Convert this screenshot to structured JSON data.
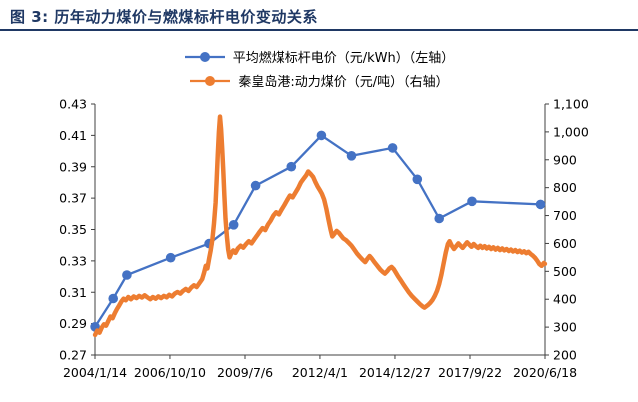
{
  "title": "图 3: 历年动力煤价与燃煤标杆电价变动关系",
  "theme": {
    "title_color": "#1F3864",
    "divider_color": "#1F3864",
    "axis_color": "#404040",
    "tick_label_color": "#000000",
    "background": "#ffffff"
  },
  "legend": [
    {
      "label": "平均燃煤标杆电价（元/kWh）（左轴）",
      "color": "#4472C4"
    },
    {
      "label": "秦皇岛港:动力煤价（元/吨）（右轴）",
      "color": "#ED7D31"
    }
  ],
  "chart_data": {
    "type": "line",
    "title": "历年动力煤价与燃煤标杆电价变动关系",
    "grid": false,
    "legend_position": "top",
    "x_range": [
      2004.036,
      2020.463
    ],
    "x_ticks": [
      {
        "value": 2004.036,
        "label": "2004/1/14"
      },
      {
        "value": 2006.772,
        "label": "2006/10/10"
      },
      {
        "value": 2009.512,
        "label": "2009/7/6"
      },
      {
        "value": 2012.247,
        "label": "2012/4/1"
      },
      {
        "value": 2014.986,
        "label": "2014/12/27"
      },
      {
        "value": 2017.725,
        "label": "2017/9/22"
      },
      {
        "value": 2020.463,
        "label": "2020/6/18"
      }
    ],
    "left_axis": {
      "min": 0.27,
      "max": 0.43,
      "ticks": [
        {
          "value": 0.27,
          "label": "0.27"
        },
        {
          "value": 0.29,
          "label": "0.29"
        },
        {
          "value": 0.31,
          "label": "0.31"
        },
        {
          "value": 0.33,
          "label": "0.33"
        },
        {
          "value": 0.35,
          "label": "0.35"
        },
        {
          "value": 0.37,
          "label": "0.37"
        },
        {
          "value": 0.39,
          "label": "0.39"
        },
        {
          "value": 0.41,
          "label": "0.41"
        },
        {
          "value": 0.43,
          "label": "0.43"
        }
      ]
    },
    "right_axis": {
      "min": 200,
      "max": 1100,
      "ticks": [
        {
          "value": 200,
          "label": "200"
        },
        {
          "value": 300,
          "label": "300"
        },
        {
          "value": 400,
          "label": "400"
        },
        {
          "value": 500,
          "label": "500"
        },
        {
          "value": 600,
          "label": "600"
        },
        {
          "value": 700,
          "label": "700"
        },
        {
          "value": 800,
          "label": "800"
        },
        {
          "value": 900,
          "label": "900"
        },
        {
          "value": 1000,
          "label": "1,000"
        },
        {
          "value": 1100,
          "label": "1,100"
        }
      ]
    },
    "series": [
      {
        "id": "electricity-price",
        "name": "平均燃煤标杆电价（元/kWh）（左轴）",
        "axis": "left",
        "color": "#4472C4",
        "marker": true,
        "line_width": 2.3,
        "points": [
          [
            2004.04,
            0.288
          ],
          [
            2004.7,
            0.306
          ],
          [
            2005.2,
            0.321
          ],
          [
            2006.8,
            0.332
          ],
          [
            2008.2,
            0.341
          ],
          [
            2009.1,
            0.353
          ],
          [
            2009.9,
            0.378
          ],
          [
            2011.2,
            0.39
          ],
          [
            2012.3,
            0.41
          ],
          [
            2013.4,
            0.397
          ],
          [
            2014.9,
            0.402
          ],
          [
            2015.8,
            0.382
          ],
          [
            2016.6,
            0.357
          ],
          [
            2017.8,
            0.368
          ],
          [
            2020.3,
            0.366
          ]
        ]
      },
      {
        "id": "coal-price",
        "name": "秦皇岛港:动力煤价（元/吨）（右轴）",
        "axis": "right",
        "color": "#ED7D31",
        "marker": false,
        "line_width": 4.5,
        "points": [
          [
            2004.04,
            272
          ],
          [
            2004.12,
            288
          ],
          [
            2004.2,
            280
          ],
          [
            2004.28,
            298
          ],
          [
            2004.36,
            310
          ],
          [
            2004.44,
            305
          ],
          [
            2004.52,
            322
          ],
          [
            2004.6,
            338
          ],
          [
            2004.68,
            332
          ],
          [
            2004.76,
            350
          ],
          [
            2004.84,
            365
          ],
          [
            2004.92,
            378
          ],
          [
            2005.0,
            392
          ],
          [
            2005.08,
            402
          ],
          [
            2005.16,
            396
          ],
          [
            2005.25,
            408
          ],
          [
            2005.35,
            400
          ],
          [
            2005.45,
            410
          ],
          [
            2005.55,
            404
          ],
          [
            2005.65,
            412
          ],
          [
            2005.75,
            406
          ],
          [
            2005.85,
            414
          ],
          [
            2005.95,
            407
          ],
          [
            2006.05,
            400
          ],
          [
            2006.15,
            408
          ],
          [
            2006.25,
            402
          ],
          [
            2006.35,
            410
          ],
          [
            2006.45,
            404
          ],
          [
            2006.55,
            412
          ],
          [
            2006.65,
            407
          ],
          [
            2006.75,
            416
          ],
          [
            2006.85,
            410
          ],
          [
            2006.95,
            420
          ],
          [
            2007.05,
            426
          ],
          [
            2007.15,
            420
          ],
          [
            2007.25,
            430
          ],
          [
            2007.35,
            437
          ],
          [
            2007.45,
            430
          ],
          [
            2007.55,
            442
          ],
          [
            2007.65,
            450
          ],
          [
            2007.75,
            444
          ],
          [
            2007.85,
            458
          ],
          [
            2007.95,
            472
          ],
          [
            2008.02,
            495
          ],
          [
            2008.08,
            520
          ],
          [
            2008.14,
            510
          ],
          [
            2008.2,
            545
          ],
          [
            2008.26,
            575
          ],
          [
            2008.32,
            615
          ],
          [
            2008.38,
            672
          ],
          [
            2008.44,
            745
          ],
          [
            2008.48,
            830
          ],
          [
            2008.52,
            920
          ],
          [
            2008.56,
            1000
          ],
          [
            2008.6,
            1055
          ],
          [
            2008.64,
            1010
          ],
          [
            2008.68,
            940
          ],
          [
            2008.72,
            860
          ],
          [
            2008.76,
            770
          ],
          [
            2008.8,
            690
          ],
          [
            2008.85,
            625
          ],
          [
            2008.9,
            578
          ],
          [
            2008.95,
            550
          ],
          [
            2009.0,
            562
          ],
          [
            2009.08,
            575
          ],
          [
            2009.16,
            566
          ],
          [
            2009.25,
            582
          ],
          [
            2009.35,
            592
          ],
          [
            2009.45,
            585
          ],
          [
            2009.55,
            598
          ],
          [
            2009.65,
            608
          ],
          [
            2009.75,
            600
          ],
          [
            2009.85,
            615
          ],
          [
            2009.95,
            628
          ],
          [
            2010.05,
            642
          ],
          [
            2010.15,
            655
          ],
          [
            2010.25,
            648
          ],
          [
            2010.35,
            668
          ],
          [
            2010.45,
            682
          ],
          [
            2010.55,
            700
          ],
          [
            2010.65,
            712
          ],
          [
            2010.75,
            704
          ],
          [
            2010.85,
            722
          ],
          [
            2010.95,
            738
          ],
          [
            2011.05,
            755
          ],
          [
            2011.15,
            772
          ],
          [
            2011.25,
            765
          ],
          [
            2011.35,
            782
          ],
          [
            2011.45,
            798
          ],
          [
            2011.55,
            818
          ],
          [
            2011.65,
            832
          ],
          [
            2011.75,
            845
          ],
          [
            2011.82,
            858
          ],
          [
            2011.9,
            850
          ],
          [
            2012.0,
            838
          ],
          [
            2012.08,
            820
          ],
          [
            2012.16,
            805
          ],
          [
            2012.24,
            792
          ],
          [
            2012.32,
            778
          ],
          [
            2012.4,
            758
          ],
          [
            2012.48,
            725
          ],
          [
            2012.56,
            685
          ],
          [
            2012.64,
            648
          ],
          [
            2012.7,
            625
          ],
          [
            2012.78,
            635
          ],
          [
            2012.86,
            645
          ],
          [
            2012.94,
            638
          ],
          [
            2013.02,
            628
          ],
          [
            2013.1,
            618
          ],
          [
            2013.2,
            612
          ],
          [
            2013.3,
            602
          ],
          [
            2013.4,
            592
          ],
          [
            2013.5,
            578
          ],
          [
            2013.6,
            564
          ],
          [
            2013.7,
            553
          ],
          [
            2013.8,
            542
          ],
          [
            2013.9,
            533
          ],
          [
            2013.98,
            545
          ],
          [
            2014.06,
            555
          ],
          [
            2014.14,
            546
          ],
          [
            2014.22,
            535
          ],
          [
            2014.3,
            525
          ],
          [
            2014.38,
            515
          ],
          [
            2014.46,
            505
          ],
          [
            2014.54,
            498
          ],
          [
            2014.62,
            492
          ],
          [
            2014.7,
            500
          ],
          [
            2014.78,
            510
          ],
          [
            2014.86,
            516
          ],
          [
            2014.94,
            508
          ],
          [
            2015.02,
            495
          ],
          [
            2015.1,
            482
          ],
          [
            2015.2,
            468
          ],
          [
            2015.3,
            452
          ],
          [
            2015.4,
            438
          ],
          [
            2015.5,
            424
          ],
          [
            2015.6,
            412
          ],
          [
            2015.7,
            402
          ],
          [
            2015.8,
            392
          ],
          [
            2015.9,
            382
          ],
          [
            2016.0,
            374
          ],
          [
            2016.06,
            370
          ],
          [
            2016.12,
            374
          ],
          [
            2016.2,
            380
          ],
          [
            2016.28,
            388
          ],
          [
            2016.36,
            398
          ],
          [
            2016.44,
            412
          ],
          [
            2016.52,
            430
          ],
          [
            2016.6,
            455
          ],
          [
            2016.68,
            488
          ],
          [
            2016.76,
            528
          ],
          [
            2016.84,
            568
          ],
          [
            2016.92,
            598
          ],
          [
            2016.98,
            608
          ],
          [
            2017.06,
            592
          ],
          [
            2017.14,
            580
          ],
          [
            2017.22,
            590
          ],
          [
            2017.3,
            600
          ],
          [
            2017.38,
            592
          ],
          [
            2017.46,
            584
          ],
          [
            2017.54,
            594
          ],
          [
            2017.62,
            604
          ],
          [
            2017.7,
            596
          ],
          [
            2017.78,
            588
          ],
          [
            2017.86,
            598
          ],
          [
            2017.94,
            590
          ],
          [
            2018.02,
            584
          ],
          [
            2018.1,
            592
          ],
          [
            2018.18,
            584
          ],
          [
            2018.26,
            590
          ],
          [
            2018.34,
            582
          ],
          [
            2018.42,
            588
          ],
          [
            2018.5,
            580
          ],
          [
            2018.58,
            586
          ],
          [
            2018.66,
            578
          ],
          [
            2018.74,
            584
          ],
          [
            2018.82,
            576
          ],
          [
            2018.9,
            582
          ],
          [
            2018.98,
            575
          ],
          [
            2019.06,
            580
          ],
          [
            2019.14,
            573
          ],
          [
            2019.22,
            578
          ],
          [
            2019.3,
            571
          ],
          [
            2019.38,
            576
          ],
          [
            2019.46,
            569
          ],
          [
            2019.54,
            574
          ],
          [
            2019.62,
            567
          ],
          [
            2019.7,
            572
          ],
          [
            2019.78,
            565
          ],
          [
            2019.86,
            570
          ],
          [
            2019.94,
            562
          ],
          [
            2020.02,
            556
          ],
          [
            2020.1,
            548
          ],
          [
            2020.18,
            538
          ],
          [
            2020.26,
            526
          ],
          [
            2020.34,
            520
          ],
          [
            2020.42,
            530
          ],
          [
            2020.46,
            527
          ]
        ]
      }
    ]
  }
}
